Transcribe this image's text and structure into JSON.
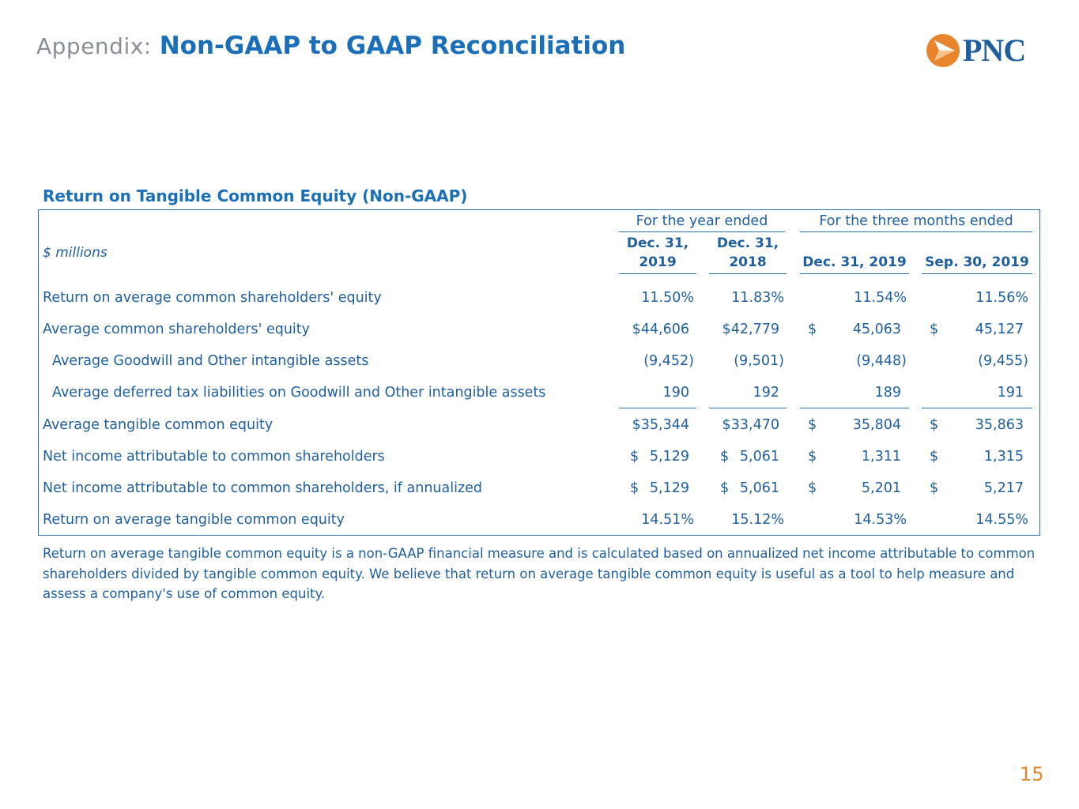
{
  "header": {
    "prefix": "Appendix:",
    "title": "Non-GAAP to GAAP Reconciliation"
  },
  "logo": {
    "text": "PNC",
    "icon": "pnc-triangle-logo-icon",
    "color_orange": "#e8842c",
    "color_blue": "#1f5f9e"
  },
  "table": {
    "title": "Return on Tangible Common Equity (Non-GAAP)",
    "units_label": "$ millions",
    "group_headers": {
      "year": "For the year ended",
      "quarter": "For the three months ended"
    },
    "col_headers": {
      "c1_line1": "Dec. 31,",
      "c1_line2": "2019",
      "c2_line1": "Dec. 31,",
      "c2_line2": "2018",
      "c3": "Dec. 31, 2019",
      "c4": "Sep. 30, 2019"
    },
    "rows": [
      {
        "label": "Return on average common shareholders' equity",
        "c1": "11.50%",
        "c2": "11.83%",
        "c3": "11.54%",
        "c4": "11.56%"
      },
      {
        "label": "Average common shareholders' equity",
        "c1": "$44,606",
        "c2": "$42,779",
        "d3": "$",
        "c3": "45,063",
        "d4": "$",
        "c4": "45,127"
      },
      {
        "label": "Average Goodwill and Other intangible assets",
        "c1": "(9,452)",
        "c2": "(9,501)",
        "c3": "(9,448)",
        "c4": "(9,455)"
      },
      {
        "label": "Average deferred tax liabilities on Goodwill and Other intangible assets",
        "c1": "190",
        "c2": "192",
        "c3": "189",
        "c4": "191"
      },
      {
        "label": "Average tangible common equity",
        "c1": "$35,344",
        "c2": "$33,470",
        "d3": "$",
        "c3": "35,804",
        "d4": "$",
        "c4": "35,863"
      },
      {
        "label": "Net income attributable to common shareholders",
        "d1": "$",
        "c1": "5,129",
        "d2": "$",
        "c2": "5,061",
        "d3": "$",
        "c3": "1,311",
        "d4": "$",
        "c4": "1,315"
      },
      {
        "label": "Net income attributable to common shareholders, if annualized",
        "d1": "$",
        "c1": "5,129",
        "d2": "$",
        "c2": "5,061",
        "d3": "$",
        "c3": "5,201",
        "d4": "$",
        "c4": "5,217"
      },
      {
        "label": "Return on average tangible common equity",
        "c1": "14.51%",
        "c2": "15.12%",
        "c3": "14.53%",
        "c4": "14.55%"
      }
    ]
  },
  "footnote": "Return on average tangible common equity is a non-GAAP financial measure and is calculated based on annualized net income attributable to common shareholders divided by tangible common equity.  We believe that return on average tangible common equity is useful as a tool to help measure and assess a company's use of common equity.",
  "page_number": "15"
}
